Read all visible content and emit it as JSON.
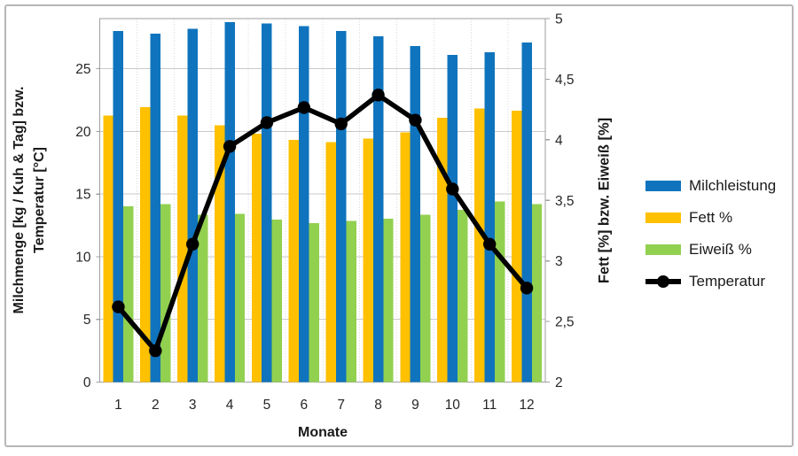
{
  "chart_data": {
    "type": "bar",
    "subtype": "combo-bar-line",
    "categories": [
      "1",
      "2",
      "3",
      "4",
      "5",
      "6",
      "7",
      "8",
      "9",
      "10",
      "11",
      "12"
    ],
    "series": [
      {
        "name": "Milchleistung",
        "render": "bar",
        "axis": "left",
        "color": "#0f74bd",
        "values": [
          28.0,
          27.8,
          28.2,
          28.7,
          28.6,
          28.4,
          28.0,
          27.6,
          26.8,
          26.1,
          26.3,
          27.1
        ]
      },
      {
        "name": "Fett %",
        "render": "bar",
        "axis": "right",
        "color": "#ffc000",
        "values": [
          4.2,
          4.27,
          4.2,
          4.12,
          4.05,
          4.0,
          3.98,
          4.01,
          4.06,
          4.18,
          4.26,
          4.24
        ]
      },
      {
        "name": "Eiweiß %",
        "render": "bar",
        "axis": "right",
        "color": "#92d050",
        "values": [
          3.45,
          3.47,
          3.38,
          3.39,
          3.34,
          3.31,
          3.33,
          3.35,
          3.38,
          3.42,
          3.49,
          3.47
        ]
      },
      {
        "name": "Temperatur",
        "render": "line",
        "axis": "left",
        "color": "#000000",
        "values": [
          6.0,
          2.5,
          11.0,
          18.8,
          20.7,
          21.9,
          20.6,
          22.9,
          20.9,
          15.4,
          11.0,
          7.5
        ]
      }
    ],
    "left_axis": {
      "title": "Milchmenge [kg / Kuh & Tag] bzw.\nTemperatur [°C]",
      "min": 0,
      "max": 29,
      "tick_step": 5,
      "tick_values": [
        0,
        5,
        10,
        15,
        20,
        25
      ],
      "tick_labels": [
        "0",
        "5",
        "10",
        "15",
        "20",
        "25"
      ]
    },
    "right_axis": {
      "title": "Fett [%] bzw. Eiweiß [%]",
      "min": 2,
      "max": 5,
      "tick_step": 0.5,
      "tick_values": [
        2,
        2.5,
        3,
        3.5,
        4,
        4.5,
        5
      ],
      "tick_labels": [
        "2",
        "2,5",
        "3",
        "3,5",
        "4",
        "4,5",
        "5"
      ]
    },
    "x_axis": {
      "title": "Monate"
    },
    "legend": {
      "position": "right",
      "items": [
        "Milchleistung",
        "Fett %",
        "Eiweiß %",
        "Temperatur"
      ]
    },
    "grid": "horizontal-major-plus-dotted-category-lines"
  },
  "colors": {
    "background": "#ffffff",
    "frame_border": "#b6b6b6",
    "gridline": "#c9c9c9",
    "axis_line": "#9f9f9f",
    "category_dotted_line": "#d9d9d9",
    "tick_text": "#262626",
    "milchleistung_blue": "#0f74bd",
    "fett_yellow": "#ffc000",
    "eiweiss_green": "#92d050",
    "temperatur_black": "#000000"
  }
}
